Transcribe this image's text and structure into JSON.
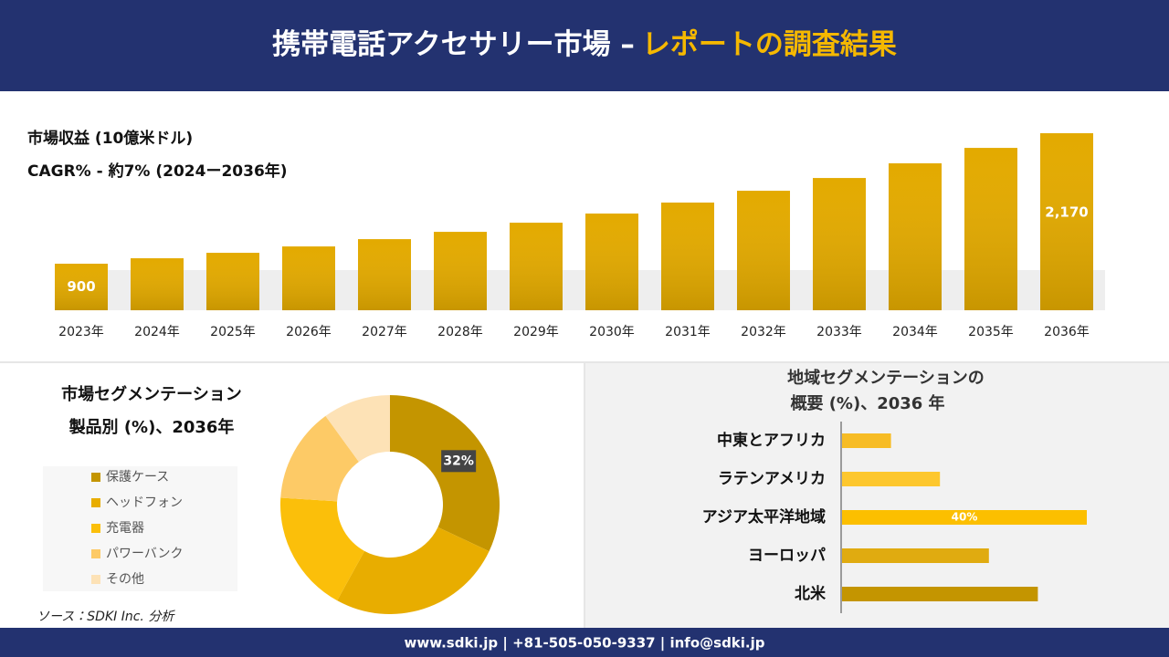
{
  "header": {
    "title": "携帯電話アクセサリー市場 –",
    "title_highlight": "レポートの調査結果"
  },
  "chart_data": [
    {
      "type": "bar",
      "title": "市場収益 (10億米ドル)",
      "subtitle": "CAGR% - 約7% (2024ー2036年)",
      "categories": [
        "2023年",
        "2024年",
        "2025年",
        "2026年",
        "2027年",
        "2028年",
        "2029年",
        "2030年",
        "2031年",
        "2032年",
        "2033年",
        "2034年",
        "2035年",
        "2036年"
      ],
      "values": [
        900,
        953,
        1006,
        1068,
        1139,
        1210,
        1299,
        1388,
        1495,
        1610,
        1734,
        1877,
        2027,
        2170
      ],
      "value_labels": [
        "900",
        null,
        null,
        null,
        null,
        null,
        null,
        null,
        null,
        null,
        null,
        null,
        null,
        "2,170"
      ],
      "color": "#e3aa00",
      "ylim": [
        447,
        2200
      ]
    },
    {
      "type": "pie",
      "title": "市場セグメンテーション",
      "subtitle": "製品別 (%)、2036年",
      "categories": [
        "保護ケース",
        "ヘッドフォン",
        "充電器",
        "パワーバンク",
        "その他"
      ],
      "values": [
        32,
        26,
        18,
        14,
        10
      ],
      "value_labels": [
        "32%",
        null,
        null,
        null,
        null
      ],
      "colors": [
        "#c49500",
        "#e8ad00",
        "#fbbf0a",
        "#fdca66",
        "#fde2b6"
      ],
      "legend": "left"
    },
    {
      "type": "barh",
      "title": "地域セグメンテーションの",
      "subtitle": "概要 (%)、2036 年",
      "categories": [
        "中東とアフリカ",
        "ラテンアメリカ",
        "アジア太平洋地域",
        "ヨーロッパ",
        "北米"
      ],
      "values": [
        8,
        16,
        40,
        24,
        32
      ],
      "value_labels": [
        null,
        null,
        "40%",
        null,
        null
      ],
      "colors": [
        "#f7bc25",
        "#fdc72e",
        "#fcbf00",
        "#e0ab10",
        "#c49500"
      ],
      "xlim": [
        0,
        40
      ]
    }
  ],
  "source": "ソース：SDKI Inc. 分析",
  "footer": "www.sdki.jp | +81-505-050-9337 | info@sdki.jp"
}
